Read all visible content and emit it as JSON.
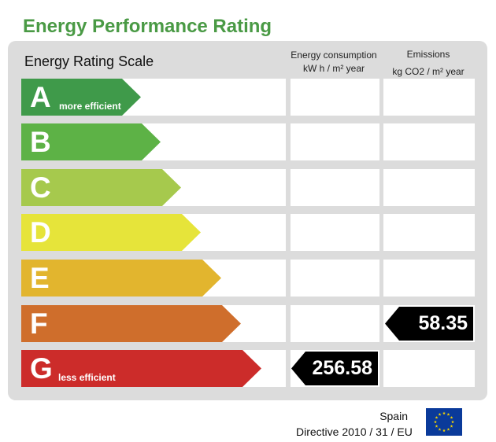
{
  "title": "Energy Performance Rating",
  "scale_title": "Energy Rating Scale",
  "columns": {
    "consumption_line1": "Energy consumption",
    "consumption_line2": "kW h / m² year",
    "emissions_line1": "Emissions",
    "emissions_line2": "kg CO2 / m² year"
  },
  "ratings": [
    {
      "letter": "A",
      "note": "more efficient",
      "color": "#3f9a4a"
    },
    {
      "letter": "B",
      "note": "",
      "color": "#5db246"
    },
    {
      "letter": "C",
      "note": "",
      "color": "#a6c94d"
    },
    {
      "letter": "D",
      "note": "",
      "color": "#e6e43a"
    },
    {
      "letter": "E",
      "note": "",
      "color": "#e2b52e"
    },
    {
      "letter": "F",
      "note": "",
      "color": "#cf6e2c"
    },
    {
      "letter": "G",
      "note": "less efficient",
      "color": "#cc2c2a"
    }
  ],
  "consumption": {
    "rating": "G",
    "value": "256.58"
  },
  "emissions": {
    "rating": "F",
    "value": "58.35"
  },
  "footer": {
    "country": "Spain",
    "directive": "Directive 2010 / 31 / EU"
  },
  "icons": {
    "flag": "eu-flag-icon"
  },
  "colors": {
    "title": "#4a9a45",
    "panel": "#dcdcdc",
    "flag_blue": "#0a3a9a",
    "flag_stars": "#f5d400"
  }
}
